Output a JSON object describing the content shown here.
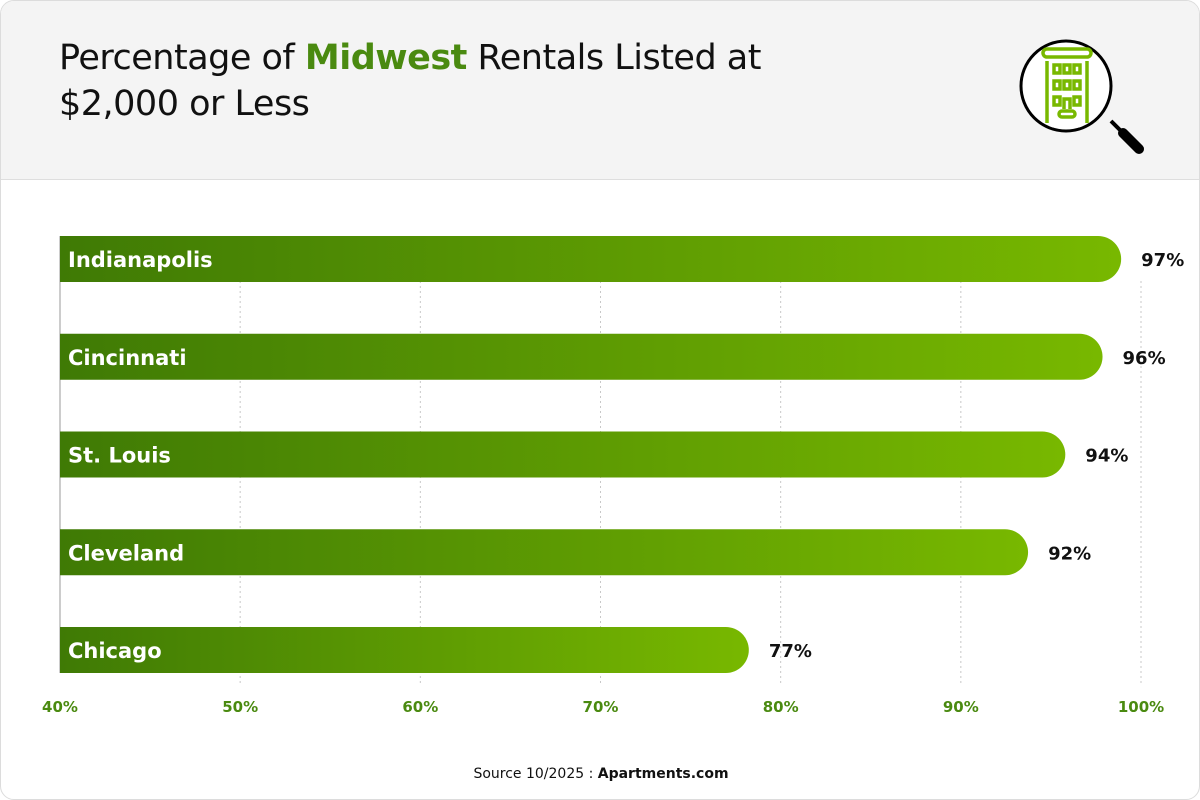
{
  "header": {
    "title_pre": "Percentage of ",
    "title_highlight": "Midwest",
    "title_post": " Rentals Listed at $2,000 or Less",
    "icon": "building-magnifier-icon"
  },
  "chart_data": {
    "type": "bar",
    "orientation": "horizontal",
    "title": "Percentage of Midwest Rentals Listed at $2,000 or Less",
    "categories": [
      "Indianapolis",
      "Cincinnati",
      "St. Louis",
      "Cleveland",
      "Chicago"
    ],
    "values": [
      97,
      96,
      94,
      92,
      77
    ],
    "data_labels": [
      "97%",
      "96%",
      "94%",
      "92%",
      "77%"
    ],
    "xlim": [
      40,
      100
    ],
    "ticks": [
      40,
      50,
      60,
      70,
      80,
      90,
      100
    ],
    "tick_labels": [
      "40%",
      "50%",
      "60%",
      "70%",
      "80%",
      "90%",
      "100%"
    ],
    "grid": "vertical dotted",
    "colors": {
      "bar_start": "#3f7a05",
      "bar_end": "#78b800",
      "tick": "#4a8a10",
      "highlight": "#4a8a10"
    }
  },
  "footer": {
    "source_prefix": "Source 10/2025 : ",
    "source_name": "Apartments.com"
  }
}
